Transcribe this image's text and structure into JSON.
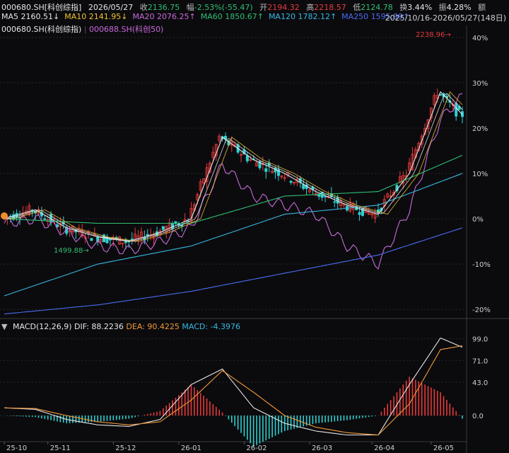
{
  "header": {
    "code": "000680.SH[科创综指]",
    "date": "2026/05/27",
    "close_label": "收",
    "close": "2136.75",
    "change_label": "幅",
    "change": "-2.53%(-55.47)",
    "open_label": "开",
    "open": "2194.32",
    "high_label": "高",
    "high": "2218.57",
    "low_label": "低",
    "low": "2124.78",
    "turnover_label": "换",
    "turnover": "3.44%",
    "amplitude_label": "振",
    "amplitude": "4.28%",
    "amount_label": "额",
    "ma_row": [
      {
        "name": "MA5",
        "value": "2160.51↓",
        "color": "#e6e6e6"
      },
      {
        "name": "MA10",
        "value": "2141.95↓",
        "color": "#f2c230"
      },
      {
        "name": "MA20",
        "value": "2076.25↑",
        "color": "#c86ad8"
      },
      {
        "name": "MA60",
        "value": "1850.67↑",
        "color": "#2fbf71"
      },
      {
        "name": "MA120",
        "value": "1782.12↑",
        "color": "#38b8e0"
      },
      {
        "name": "MA250",
        "value": "1595.99↑",
        "color": "#4a6cf0"
      }
    ],
    "range": "2025/10/16-2026/05/27(148日)",
    "legend": [
      {
        "name": "000680.SH(科创综指)",
        "color": "#e6e6e6"
      },
      {
        "name": "000688.SH(科创50)",
        "color": "#c86ad8"
      }
    ]
  },
  "chart_data": [
    {
      "type": "candlestick",
      "title": "000680.SH[科创综指]",
      "y_axis_labels": [
        "40%",
        "30%",
        "20%",
        "10%",
        "0%",
        "-10%",
        "-20%"
      ],
      "y_axis_values": [
        40,
        30,
        20,
        10,
        0,
        -10,
        -20
      ],
      "ylim": [
        -22,
        42
      ],
      "x_tick_labels": [
        "25-10",
        "25-11",
        "25-12",
        "26-01",
        "26-02",
        "26-03",
        "26-04",
        "26-05"
      ],
      "annotations": [
        {
          "text": "2238.96",
          "color": "#e83a3a"
        },
        {
          "text": "1499.88",
          "color": "#2fbf71"
        }
      ],
      "series": [
        {
          "name": "000680.SH(科创综指)",
          "color": "#e6e6e6",
          "x": [
            0,
            10,
            20,
            30,
            40,
            50,
            60,
            70,
            80,
            90,
            100,
            110,
            120,
            130,
            140,
            147
          ],
          "values": [
            0,
            2,
            -2,
            -4,
            -5,
            -3,
            0,
            18,
            13,
            10,
            6,
            3,
            1,
            10,
            28,
            23
          ]
        },
        {
          "name": "000688.SH(科创50)",
          "color": "#c86ad8",
          "x": [
            0,
            10,
            20,
            30,
            40,
            50,
            60,
            70,
            80,
            90,
            100,
            110,
            120,
            130,
            140,
            147
          ],
          "values": [
            -1,
            0,
            -3,
            -6,
            -7,
            -5,
            -2,
            12,
            5,
            3,
            1,
            -6,
            -10,
            2,
            22,
            27
          ]
        },
        {
          "name": "MA60",
          "color": "#2fbf71",
          "x": [
            0,
            30,
            60,
            90,
            120,
            147
          ],
          "values": [
            0,
            -1,
            -1,
            5,
            6,
            14
          ]
        },
        {
          "name": "MA120",
          "color": "#38b8e0",
          "x": [
            0,
            30,
            60,
            90,
            120,
            147
          ],
          "values": [
            -17,
            -10,
            -6,
            1,
            3,
            10
          ]
        },
        {
          "name": "MA250",
          "color": "#4a6cf0",
          "x": [
            0,
            30,
            60,
            90,
            120,
            147
          ],
          "values": [
            -21,
            -19,
            -16,
            -12,
            -8,
            -2
          ]
        }
      ]
    },
    {
      "type": "bar",
      "title": "MACD(12,26,9)",
      "indicators": [
        {
          "name": "DIF",
          "value": "88.2236",
          "color": "#e6e6e6"
        },
        {
          "name": "DEA",
          "value": "90.4225",
          "color": "#f2993a"
        },
        {
          "name": "MACD",
          "value": "-4.3976",
          "color": "#38b8e0"
        }
      ],
      "y_axis_labels": [
        "99.0",
        "71.0",
        "43.0",
        "0.0"
      ],
      "y_axis_values": [
        99,
        71,
        43,
        0
      ],
      "ylim": [
        -30,
        105
      ],
      "x": [
        0,
        10,
        20,
        30,
        40,
        50,
        60,
        70,
        80,
        90,
        100,
        110,
        120,
        130,
        140,
        147
      ],
      "series": [
        {
          "name": "DIF",
          "values": [
            10,
            8,
            -5,
            -12,
            -14,
            -5,
            40,
            60,
            10,
            -10,
            -20,
            -25,
            -25,
            40,
            100,
            88
          ]
        },
        {
          "name": "DEA",
          "values": [
            10,
            9,
            0,
            -8,
            -12,
            -8,
            20,
            58,
            30,
            0,
            -15,
            -22,
            -25,
            15,
            85,
            90
          ]
        }
      ]
    }
  ]
}
